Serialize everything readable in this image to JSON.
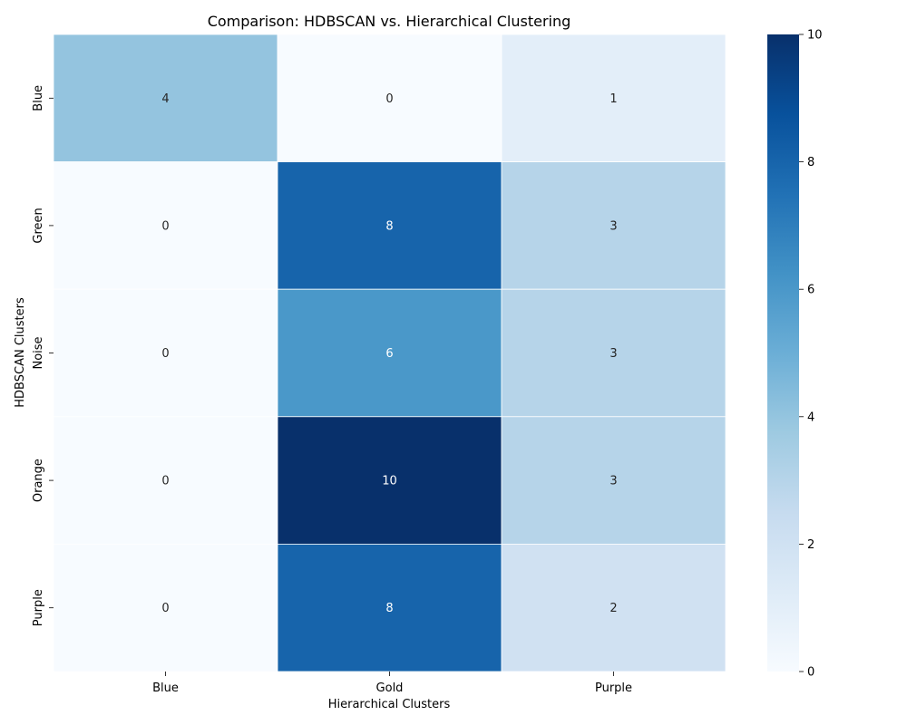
{
  "chart_data": {
    "type": "heatmap",
    "title": "Comparison: HDBSCAN vs. Hierarchical Clustering",
    "xlabel": "Hierarchical Clusters",
    "ylabel": "HDBSCAN Clusters",
    "x_categories": [
      "Blue",
      "Gold",
      "Purple"
    ],
    "y_categories": [
      "Blue",
      "Green",
      "Noise",
      "Orange",
      "Purple"
    ],
    "values": [
      [
        4,
        0,
        1
      ],
      [
        0,
        8,
        3
      ],
      [
        0,
        6,
        3
      ],
      [
        0,
        10,
        3
      ],
      [
        0,
        8,
        2
      ]
    ],
    "value_range": [
      0,
      10
    ],
    "colorbar_ticks": [
      "0",
      "2",
      "4",
      "6",
      "8",
      "10"
    ],
    "colormap": "Blues",
    "annotations": true,
    "grid": false
  }
}
